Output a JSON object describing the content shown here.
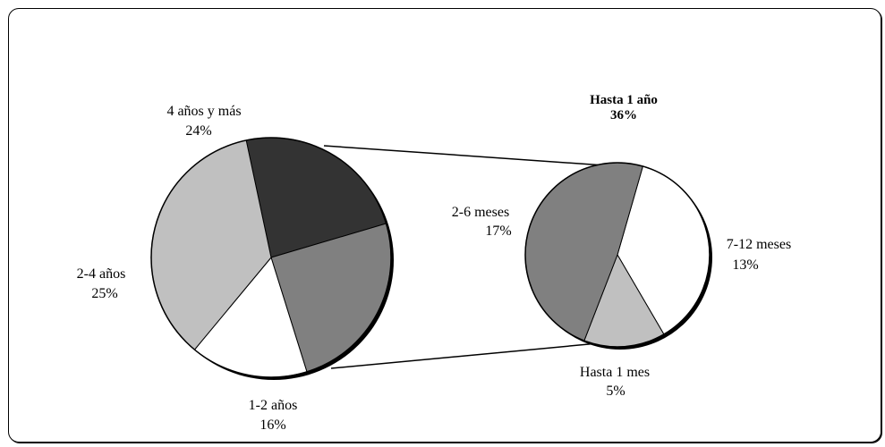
{
  "chart_data": {
    "type": "pie",
    "main": {
      "slices": [
        {
          "label": "4 años y más",
          "value": 24,
          "value_text": "24%",
          "color": "#333333"
        },
        {
          "label": "2-4 años",
          "value": 25,
          "value_text": "25%",
          "color": "#808080"
        },
        {
          "label": "1-2 años",
          "value": 16,
          "value_text": "16%",
          "color": "#ffffff"
        },
        {
          "label": "Hasta 1 año",
          "value": 36,
          "value_text": "36%",
          "color": "#c0c0c0"
        }
      ]
    },
    "breakout": {
      "title": "Hasta 1 año",
      "title_value": "36%",
      "slices": [
        {
          "label": "7-12 meses",
          "value": 13,
          "value_text": "13%",
          "color": "#ffffff"
        },
        {
          "label": "Hasta 1 mes",
          "value": 5,
          "value_text": "5%",
          "color": "#c0c0c0"
        },
        {
          "label": "2-6 meses",
          "value": 17,
          "value_text": "17%",
          "color": "#808080"
        }
      ]
    }
  }
}
